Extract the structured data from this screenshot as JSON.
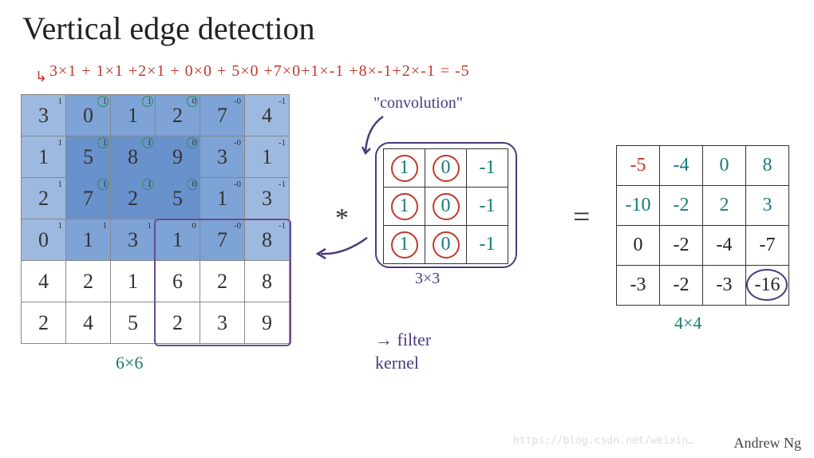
{
  "title": "Vertical edge detection",
  "equation_text": "3×1 + 1×1 +2×1 + 0×0 + 5×0 +7×0+1×-1 +8×-1+2×-1 = -5",
  "input": {
    "size_label": "6×6",
    "rows": [
      [
        3,
        0,
        1,
        2,
        7,
        4
      ],
      [
        1,
        5,
        8,
        9,
        3,
        1
      ],
      [
        2,
        7,
        2,
        5,
        1,
        3
      ],
      [
        0,
        1,
        3,
        1,
        7,
        8
      ],
      [
        4,
        2,
        1,
        6,
        2,
        8
      ],
      [
        2,
        4,
        5,
        2,
        3,
        9
      ]
    ],
    "superscripts": [
      "1",
      "1",
      "1",
      "0",
      "-0",
      "-1"
    ],
    "shade_levels": [
      [
        1,
        2,
        2,
        2,
        2,
        1
      ],
      [
        1,
        3,
        3,
        3,
        2,
        1
      ],
      [
        1,
        3,
        3,
        3,
        2,
        1
      ],
      [
        1,
        2,
        2,
        2,
        2,
        1
      ],
      [
        0,
        0,
        0,
        0,
        0,
        0
      ],
      [
        0,
        0,
        0,
        0,
        0,
        0
      ]
    ]
  },
  "kernel": {
    "size_label": "3×3",
    "rows": [
      [
        1,
        0,
        -1
      ],
      [
        1,
        0,
        -1
      ],
      [
        1,
        0,
        -1
      ]
    ],
    "circled_cols": [
      0,
      1
    ]
  },
  "output": {
    "size_label": "4×4",
    "rows": [
      [
        -5,
        -4,
        0,
        8
      ],
      [
        -10,
        -2,
        2,
        3
      ],
      [
        0,
        -2,
        -4,
        -7
      ],
      [
        -3,
        -2,
        -3,
        -16
      ]
    ],
    "handwritten_rows": [
      0,
      1
    ],
    "red_cell": [
      0,
      0
    ]
  },
  "labels": {
    "convolution": "\"convolution\"",
    "filter_kernel_line1": "→ filter",
    "filter_kernel_line2": "kernel",
    "asterisk": "*",
    "equals": "="
  },
  "author": "Andrew Ng",
  "watermark": "https://blog.csdn.net/weixin…",
  "colors": {
    "red": "#c0392b",
    "teal": "#1a7a7a",
    "purple": "#4b3a7a",
    "shade1": "#9db9e0",
    "shade2": "#7ea3d6",
    "shade3": "#6992cd"
  }
}
